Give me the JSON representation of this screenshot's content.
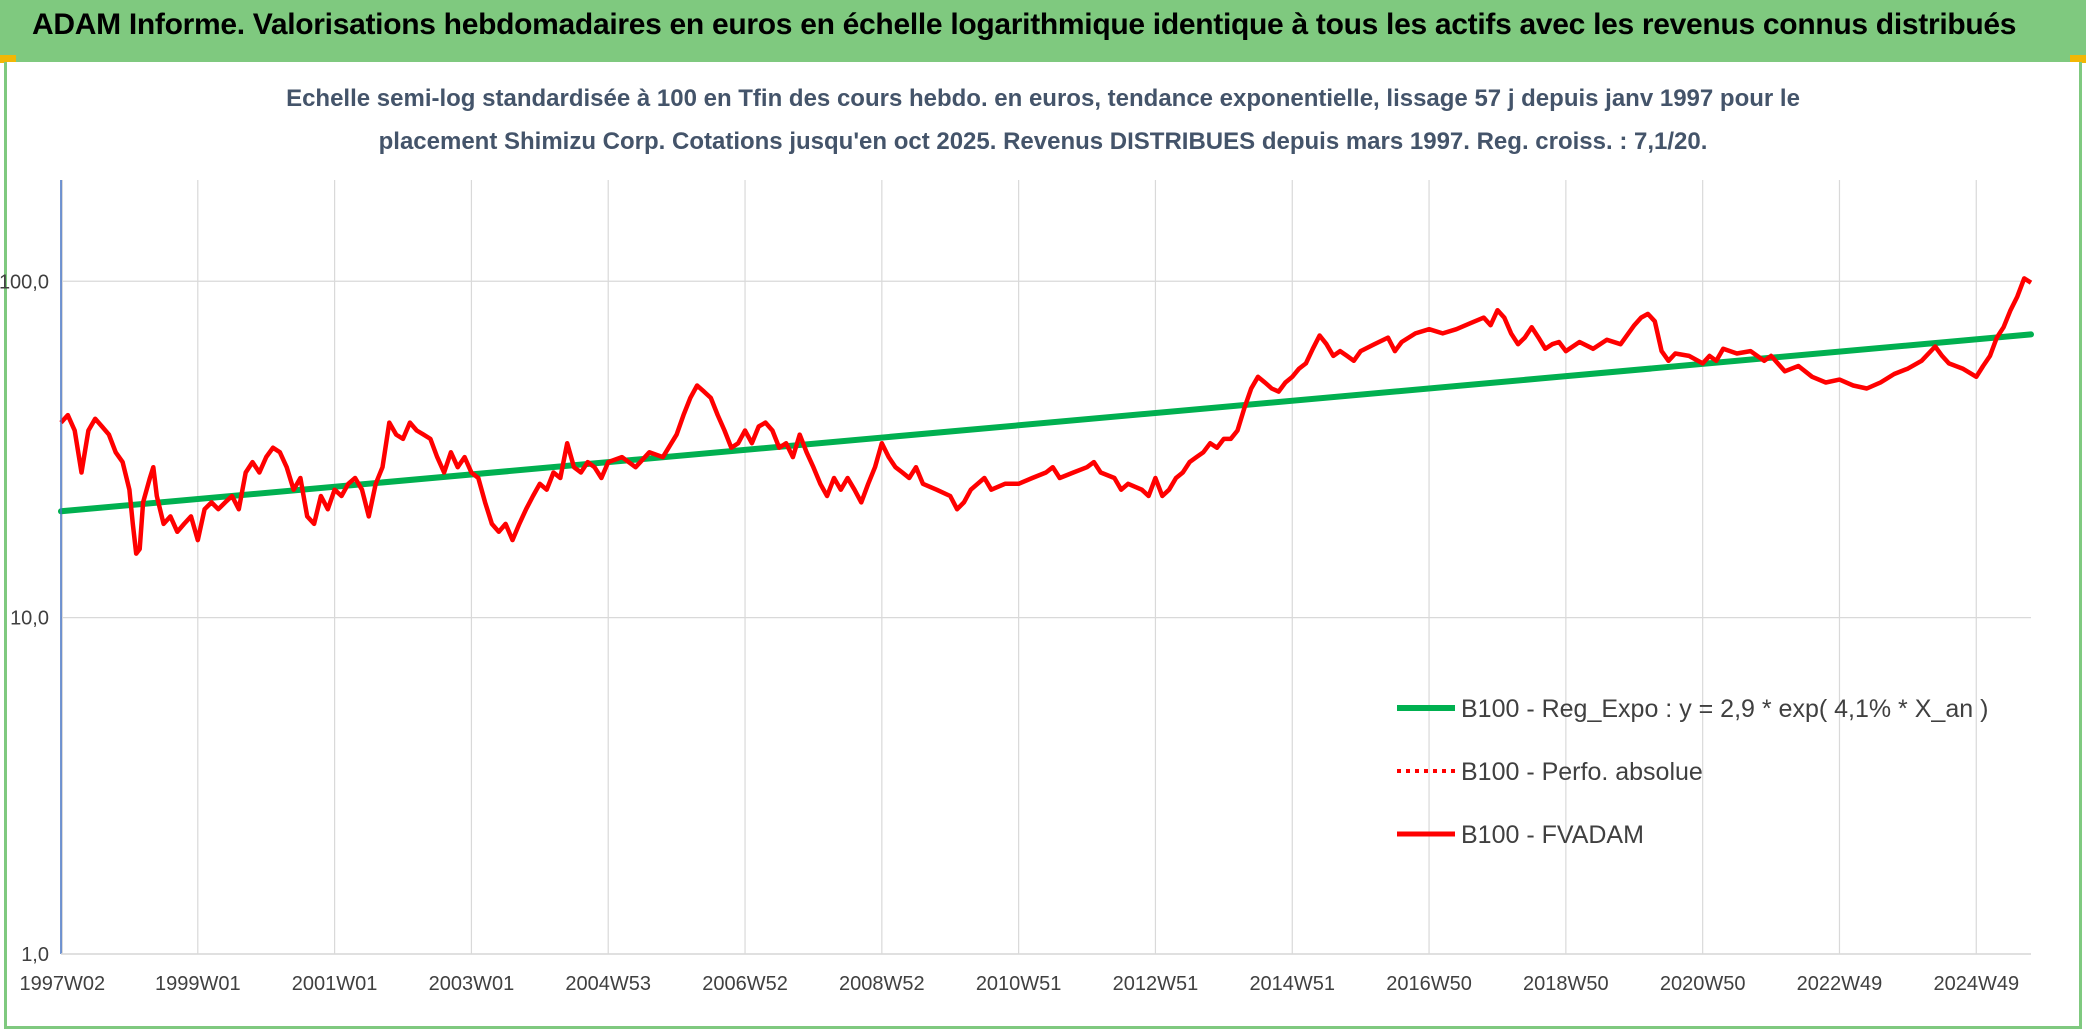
{
  "header": {
    "title": "ADAM Informe. Valorisations hebdomadaires en euros en échelle logarithmique identique à tous les actifs avec les revenus connus distribués"
  },
  "colors": {
    "banner": "#7fc97f",
    "trend": "#00b050",
    "perf": "#ff0000",
    "fvadam": "#ff0000",
    "grid": "#d9d9d9",
    "axis": "#4472c4"
  },
  "chart_data": {
    "type": "line",
    "title": "Echelle semi-log standardisée à 100 en Tfin des cours hebdo. en euros, tendance exponentielle, lissage 57 j depuis janv 1997 pour le placement Shimizu Corp. Cotations jusqu'en oct 2025. Revenus DISTRIBUES depuis mars 1997. Reg. croiss. : 7,1/20.",
    "title_lines": [
      "Echelle semi-log standardisée à 100 en Tfin des cours hebdo. en euros, tendance exponentielle, lissage 57 j depuis janv 1997 pour le",
      "placement Shimizu Corp. Cotations jusqu'en oct 2025. Revenus DISTRIBUES depuis mars 1997. Reg. croiss. : 7,1/20."
    ],
    "x_axis": {
      "scale": "years",
      "range": [
        1997.0,
        2025.8
      ],
      "ticks": [
        {
          "label": "1997W02",
          "x": 1997.02
        },
        {
          "label": "1999W01",
          "x": 1999.0
        },
        {
          "label": "2001W01",
          "x": 2001.0
        },
        {
          "label": "2003W01",
          "x": 2003.0
        },
        {
          "label": "2004W53",
          "x": 2005.0
        },
        {
          "label": "2006W52",
          "x": 2007.0
        },
        {
          "label": "2008W52",
          "x": 2009.0
        },
        {
          "label": "2010W51",
          "x": 2011.0
        },
        {
          "label": "2012W51",
          "x": 2013.0
        },
        {
          "label": "2014W51",
          "x": 2015.0
        },
        {
          "label": "2016W50",
          "x": 2017.0
        },
        {
          "label": "2018W50",
          "x": 2019.0
        },
        {
          "label": "2020W50",
          "x": 2021.0
        },
        {
          "label": "2022W49",
          "x": 2023.0
        },
        {
          "label": "2024W49",
          "x": 2025.0
        }
      ]
    },
    "y_axis": {
      "scale": "log",
      "range": [
        1,
        200
      ],
      "ticks": [
        {
          "label": "1,0",
          "value": 1
        },
        {
          "label": "10,0",
          "value": 10
        },
        {
          "label": "100,0",
          "value": 100
        }
      ]
    },
    "series": [
      {
        "name": "B100 - Reg_Expo : y = 2,9 * exp( 4,1% *  X_an )",
        "style": "solid-thick",
        "color": "#00b050",
        "points": [
          [
            1997.0,
            20.7
          ],
          [
            2025.8,
            69.5
          ]
        ]
      },
      {
        "name": "B100 - Perfo. absolue",
        "style": "dotted",
        "color": "#ff0000",
        "points": []
      },
      {
        "name": "B100 - FVADAM",
        "style": "solid",
        "color": "#ff0000",
        "points": [
          [
            1997.0,
            38
          ],
          [
            1997.1,
            40
          ],
          [
            1997.2,
            36
          ],
          [
            1997.3,
            27
          ],
          [
            1997.4,
            36
          ],
          [
            1997.5,
            39
          ],
          [
            1997.6,
            37
          ],
          [
            1997.7,
            35
          ],
          [
            1997.8,
            31
          ],
          [
            1997.9,
            29
          ],
          [
            1998.0,
            24
          ],
          [
            1998.05,
            19
          ],
          [
            1998.1,
            15.5
          ],
          [
            1998.15,
            16
          ],
          [
            1998.2,
            22
          ],
          [
            1998.3,
            26
          ],
          [
            1998.35,
            28
          ],
          [
            1998.4,
            23
          ],
          [
            1998.5,
            19
          ],
          [
            1998.6,
            20
          ],
          [
            1998.7,
            18
          ],
          [
            1998.8,
            19
          ],
          [
            1998.9,
            20
          ],
          [
            1999.0,
            17
          ],
          [
            1999.1,
            21
          ],
          [
            1999.2,
            22
          ],
          [
            1999.3,
            21
          ],
          [
            1999.4,
            22
          ],
          [
            1999.5,
            23
          ],
          [
            1999.6,
            21
          ],
          [
            1999.7,
            27
          ],
          [
            1999.8,
            29
          ],
          [
            1999.9,
            27
          ],
          [
            2000.0,
            30
          ],
          [
            2000.1,
            32
          ],
          [
            2000.2,
            31
          ],
          [
            2000.3,
            28
          ],
          [
            2000.4,
            24
          ],
          [
            2000.5,
            26
          ],
          [
            2000.6,
            20
          ],
          [
            2000.7,
            19
          ],
          [
            2000.8,
            23
          ],
          [
            2000.9,
            21
          ],
          [
            2001.0,
            24
          ],
          [
            2001.1,
            23
          ],
          [
            2001.2,
            25
          ],
          [
            2001.3,
            26
          ],
          [
            2001.4,
            24
          ],
          [
            2001.5,
            20
          ],
          [
            2001.6,
            25
          ],
          [
            2001.7,
            28
          ],
          [
            2001.8,
            38
          ],
          [
            2001.9,
            35
          ],
          [
            2002.0,
            34
          ],
          [
            2002.1,
            38
          ],
          [
            2002.2,
            36
          ],
          [
            2002.3,
            35
          ],
          [
            2002.4,
            34
          ],
          [
            2002.5,
            30
          ],
          [
            2002.6,
            27
          ],
          [
            2002.7,
            31
          ],
          [
            2002.8,
            28
          ],
          [
            2002.9,
            30
          ],
          [
            2003.0,
            27
          ],
          [
            2003.1,
            26
          ],
          [
            2003.2,
            22
          ],
          [
            2003.3,
            19
          ],
          [
            2003.4,
            18
          ],
          [
            2003.5,
            19
          ],
          [
            2003.6,
            17
          ],
          [
            2003.7,
            19
          ],
          [
            2003.8,
            21
          ],
          [
            2003.9,
            23
          ],
          [
            2004.0,
            25
          ],
          [
            2004.1,
            24
          ],
          [
            2004.2,
            27
          ],
          [
            2004.3,
            26
          ],
          [
            2004.4,
            33
          ],
          [
            2004.5,
            28
          ],
          [
            2004.6,
            27
          ],
          [
            2004.7,
            29
          ],
          [
            2004.8,
            28
          ],
          [
            2004.9,
            26
          ],
          [
            2005.0,
            29
          ],
          [
            2005.2,
            30
          ],
          [
            2005.4,
            28
          ],
          [
            2005.6,
            31
          ],
          [
            2005.8,
            30
          ],
          [
            2006.0,
            35
          ],
          [
            2006.1,
            40
          ],
          [
            2006.2,
            45
          ],
          [
            2006.3,
            49
          ],
          [
            2006.4,
            47
          ],
          [
            2006.5,
            45
          ],
          [
            2006.6,
            40
          ],
          [
            2006.7,
            36
          ],
          [
            2006.8,
            32
          ],
          [
            2006.9,
            33
          ],
          [
            2007.0,
            36
          ],
          [
            2007.1,
            33
          ],
          [
            2007.2,
            37
          ],
          [
            2007.3,
            38
          ],
          [
            2007.4,
            36
          ],
          [
            2007.5,
            32
          ],
          [
            2007.6,
            33
          ],
          [
            2007.7,
            30
          ],
          [
            2007.8,
            35
          ],
          [
            2007.9,
            31
          ],
          [
            2008.0,
            28
          ],
          [
            2008.1,
            25
          ],
          [
            2008.2,
            23
          ],
          [
            2008.3,
            26
          ],
          [
            2008.4,
            24
          ],
          [
            2008.5,
            26
          ],
          [
            2008.6,
            24
          ],
          [
            2008.7,
            22
          ],
          [
            2008.8,
            25
          ],
          [
            2008.9,
            28
          ],
          [
            2009.0,
            33
          ],
          [
            2009.1,
            30
          ],
          [
            2009.2,
            28
          ],
          [
            2009.3,
            27
          ],
          [
            2009.4,
            26
          ],
          [
            2009.5,
            28
          ],
          [
            2009.6,
            25
          ],
          [
            2009.8,
            24
          ],
          [
            2010.0,
            23
          ],
          [
            2010.1,
            21
          ],
          [
            2010.2,
            22
          ],
          [
            2010.3,
            24
          ],
          [
            2010.4,
            25
          ],
          [
            2010.5,
            26
          ],
          [
            2010.6,
            24
          ],
          [
            2010.8,
            25
          ],
          [
            2011.0,
            25
          ],
          [
            2011.2,
            26
          ],
          [
            2011.4,
            27
          ],
          [
            2011.5,
            28
          ],
          [
            2011.6,
            26
          ],
          [
            2011.8,
            27
          ],
          [
            2012.0,
            28
          ],
          [
            2012.1,
            29
          ],
          [
            2012.2,
            27
          ],
          [
            2012.4,
            26
          ],
          [
            2012.5,
            24
          ],
          [
            2012.6,
            25
          ],
          [
            2012.8,
            24
          ],
          [
            2012.9,
            23
          ],
          [
            2013.0,
            26
          ],
          [
            2013.1,
            23
          ],
          [
            2013.2,
            24
          ],
          [
            2013.3,
            26
          ],
          [
            2013.4,
            27
          ],
          [
            2013.5,
            29
          ],
          [
            2013.6,
            30
          ],
          [
            2013.7,
            31
          ],
          [
            2013.8,
            33
          ],
          [
            2013.9,
            32
          ],
          [
            2014.0,
            34
          ],
          [
            2014.1,
            34
          ],
          [
            2014.2,
            36
          ],
          [
            2014.3,
            42
          ],
          [
            2014.4,
            48
          ],
          [
            2014.5,
            52
          ],
          [
            2014.6,
            50
          ],
          [
            2014.7,
            48
          ],
          [
            2014.8,
            47
          ],
          [
            2014.9,
            50
          ],
          [
            2015.0,
            52
          ],
          [
            2015.1,
            55
          ],
          [
            2015.2,
            57
          ],
          [
            2015.3,
            63
          ],
          [
            2015.4,
            69
          ],
          [
            2015.5,
            65
          ],
          [
            2015.6,
            60
          ],
          [
            2015.7,
            62
          ],
          [
            2015.8,
            60
          ],
          [
            2015.9,
            58
          ],
          [
            2016.0,
            62
          ],
          [
            2016.2,
            65
          ],
          [
            2016.4,
            68
          ],
          [
            2016.5,
            62
          ],
          [
            2016.6,
            66
          ],
          [
            2016.8,
            70
          ],
          [
            2017.0,
            72
          ],
          [
            2017.2,
            70
          ],
          [
            2017.4,
            72
          ],
          [
            2017.6,
            75
          ],
          [
            2017.8,
            78
          ],
          [
            2017.9,
            74
          ],
          [
            2018.0,
            82
          ],
          [
            2018.1,
            78
          ],
          [
            2018.2,
            70
          ],
          [
            2018.3,
            65
          ],
          [
            2018.4,
            68
          ],
          [
            2018.5,
            73
          ],
          [
            2018.6,
            68
          ],
          [
            2018.7,
            63
          ],
          [
            2018.8,
            65
          ],
          [
            2018.9,
            66
          ],
          [
            2019.0,
            62
          ],
          [
            2019.2,
            66
          ],
          [
            2019.4,
            63
          ],
          [
            2019.6,
            67
          ],
          [
            2019.8,
            65
          ],
          [
            2020.0,
            74
          ],
          [
            2020.1,
            78
          ],
          [
            2020.2,
            80
          ],
          [
            2020.3,
            76
          ],
          [
            2020.4,
            62
          ],
          [
            2020.5,
            58
          ],
          [
            2020.6,
            61
          ],
          [
            2020.8,
            60
          ],
          [
            2021.0,
            57
          ],
          [
            2021.1,
            60
          ],
          [
            2021.2,
            58
          ],
          [
            2021.3,
            63
          ],
          [
            2021.5,
            61
          ],
          [
            2021.7,
            62
          ],
          [
            2021.9,
            58
          ],
          [
            2022.0,
            60
          ],
          [
            2022.2,
            54
          ],
          [
            2022.4,
            56
          ],
          [
            2022.6,
            52
          ],
          [
            2022.8,
            50
          ],
          [
            2023.0,
            51
          ],
          [
            2023.2,
            49
          ],
          [
            2023.4,
            48
          ],
          [
            2023.6,
            50
          ],
          [
            2023.8,
            53
          ],
          [
            2024.0,
            55
          ],
          [
            2024.2,
            58
          ],
          [
            2024.4,
            64
          ],
          [
            2024.5,
            60
          ],
          [
            2024.6,
            57
          ],
          [
            2024.8,
            55
          ],
          [
            2025.0,
            52
          ],
          [
            2025.1,
            56
          ],
          [
            2025.2,
            60
          ],
          [
            2025.3,
            68
          ],
          [
            2025.4,
            73
          ],
          [
            2025.5,
            82
          ],
          [
            2025.6,
            90
          ],
          [
            2025.7,
            102
          ],
          [
            2025.8,
            99
          ]
        ]
      }
    ],
    "legend": {
      "position": "bottom-right",
      "entries": [
        "B100 - Reg_Expo : y = 2,9 * exp( 4,1% *  X_an )",
        "B100 - Perfo. absolue",
        "B100 - FVADAM"
      ]
    },
    "grid": true
  }
}
